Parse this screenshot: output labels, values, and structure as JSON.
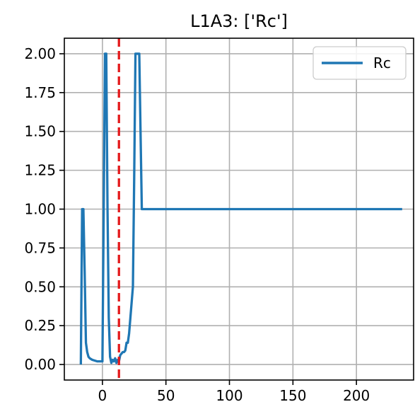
{
  "chart_data": {
    "type": "line",
    "title": "L1A3: ['Rc']",
    "xlabel": "",
    "ylabel": "",
    "xlim": [
      -30,
      245
    ],
    "ylim": [
      -0.1,
      2.1
    ],
    "grid": true,
    "legend_placement": "top-right",
    "x_ticks": [
      0,
      50,
      100,
      150,
      200
    ],
    "x_tick_labels": [
      "0",
      "50",
      "100",
      "150",
      "200"
    ],
    "y_ticks": [
      0,
      0.25,
      0.5,
      0.75,
      1.0,
      1.25,
      1.5,
      1.75,
      2.0
    ],
    "y_tick_labels": [
      "0.00",
      "0.25",
      "0.50",
      "0.75",
      "1.00",
      "1.25",
      "1.50",
      "1.75",
      "2.00"
    ],
    "series": [
      {
        "name": "Rc",
        "color": "#1f77b4",
        "x": [
          -17,
          -16,
          -15,
          -14,
          -13,
          -12,
          -11,
          -10,
          -8,
          -6,
          -4,
          -2,
          0,
          1,
          2,
          3,
          4,
          5,
          6,
          7,
          8,
          9,
          10,
          11,
          12,
          13,
          14,
          15,
          16,
          17,
          18,
          19,
          20,
          21,
          22,
          23,
          24,
          25,
          26,
          27,
          28,
          29,
          30,
          31,
          50,
          100,
          150,
          200,
          236
        ],
        "values": [
          0,
          1.0,
          1.0,
          0.6,
          0.14,
          0.08,
          0.05,
          0.04,
          0.03,
          0.025,
          0.02,
          0.02,
          0.02,
          1.0,
          2.0,
          2.0,
          1.0,
          0.3,
          0.05,
          0.01,
          0.03,
          0.02,
          0.04,
          0.01,
          0.03,
          0.02,
          0.06,
          0.07,
          0.08,
          0.08,
          0.09,
          0.14,
          0.14,
          0.2,
          0.3,
          0.4,
          0.5,
          1.2,
          2.0,
          2.0,
          2.0,
          2.0,
          1.5,
          1.0,
          1.0,
          1.0,
          1.0,
          1.0,
          1.0
        ]
      }
    ],
    "vlines": [
      {
        "x": 13,
        "color": "#e41a1c",
        "style": "dashed"
      }
    ]
  }
}
